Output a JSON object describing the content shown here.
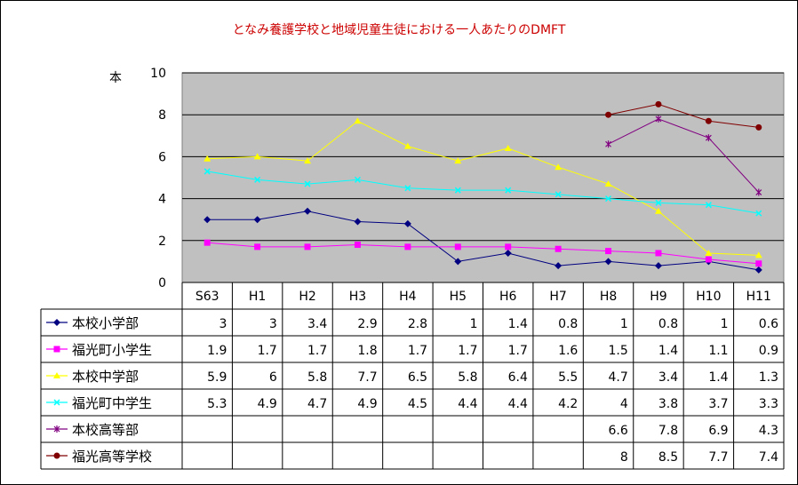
{
  "chart_data": {
    "type": "line",
    "title": "となみ養護学校と地域児童生徒における一人あたりのDMFT",
    "ylabel": "本",
    "ylim": [
      0,
      10
    ],
    "yticks": [
      0,
      2,
      4,
      6,
      8,
      10
    ],
    "grid": true,
    "categories": [
      "S63",
      "H1",
      "H2",
      "H3",
      "H4",
      "H5",
      "H6",
      "H7",
      "H8",
      "H9",
      "H10",
      "H11"
    ],
    "series": [
      {
        "name": "本校小学部",
        "color": "#000080",
        "marker": "diamond",
        "values": [
          3,
          3,
          3.4,
          2.9,
          2.8,
          1,
          1.4,
          0.8,
          1,
          0.8,
          1,
          0.6
        ]
      },
      {
        "name": "福光町小学生",
        "color": "#ff00ff",
        "marker": "square",
        "values": [
          1.9,
          1.7,
          1.7,
          1.8,
          1.7,
          1.7,
          1.7,
          1.6,
          1.5,
          1.4,
          1.1,
          0.9
        ]
      },
      {
        "name": "本校中学部",
        "color": "#ffff00",
        "marker": "triangle",
        "values": [
          5.9,
          6,
          5.8,
          7.7,
          6.5,
          5.8,
          6.4,
          5.5,
          4.7,
          3.4,
          1.4,
          1.3
        ]
      },
      {
        "name": "福光町中学生",
        "color": "#00ffff",
        "marker": "x",
        "values": [
          5.3,
          4.9,
          4.7,
          4.9,
          4.5,
          4.4,
          4.4,
          4.2,
          4,
          3.8,
          3.7,
          3.3
        ]
      },
      {
        "name": "本校高等部",
        "color": "#800080",
        "marker": "star",
        "values": [
          null,
          null,
          null,
          null,
          null,
          null,
          null,
          null,
          6.6,
          7.8,
          6.9,
          4.3
        ]
      },
      {
        "name": "福光高等学校",
        "color": "#800000",
        "marker": "circle",
        "values": [
          null,
          null,
          null,
          null,
          null,
          null,
          null,
          null,
          8,
          8.5,
          7.7,
          7.4
        ]
      }
    ],
    "colors": {
      "plot_background": "#c0c0c0",
      "title": "#cc0000"
    }
  }
}
